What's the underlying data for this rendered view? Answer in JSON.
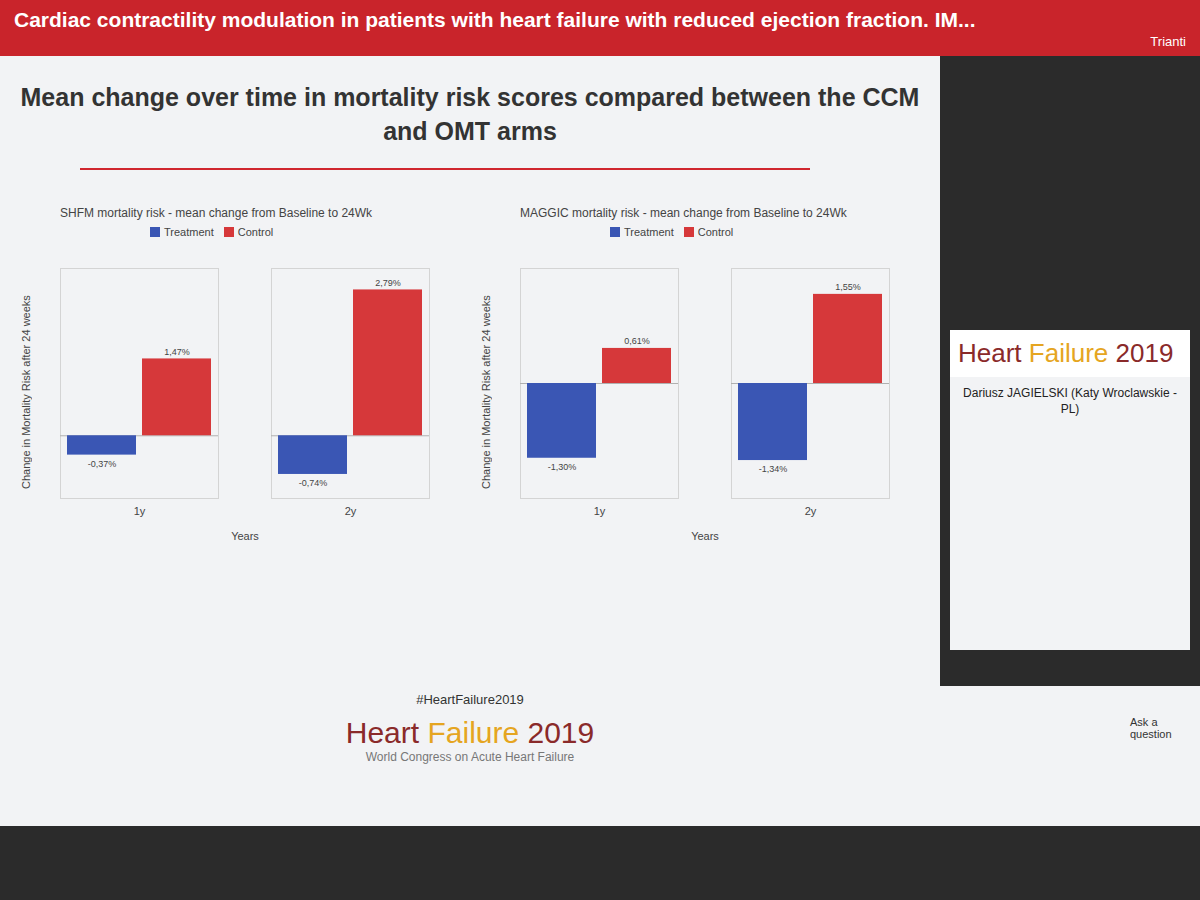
{
  "slide": {
    "header": "Cardiac contractility modulation in patients with heart failure with reduced ejection fraction. IM...",
    "session": "Trianti",
    "title": "Mean change over time in mortality risk scores compared between the CCM and OMT arms",
    "speaker": "Dariusz JAGIELSKI (Katy Wroclawskie - PL)",
    "brand": [
      "Heart",
      "Failure",
      "2019"
    ],
    "hashtag": "#HeartFailure2019",
    "congress": "World Congress on Acute Heart Failure",
    "ask": "Ask a question"
  },
  "chart_data": [
    {
      "type": "bar",
      "title": "SHFM mortality risk - mean change from Baseline to 24Wk",
      "x_label": "Years",
      "y_label": "Change in Mortality Risk after 24 weeks",
      "categories": [
        "1y",
        "2y"
      ],
      "series": [
        {
          "name": "Treatment",
          "color": "#3a56b4",
          "values": [
            -0.37,
            -0.74
          ],
          "value_labels": [
            "-0,37%",
            "-0,74%"
          ]
        },
        {
          "name": "Control",
          "color": "#d6383a",
          "values": [
            1.47,
            2.79
          ],
          "value_labels": [
            "1,47%",
            "2,79%"
          ]
        }
      ],
      "ylim": [
        -1.2,
        3.2
      ],
      "tick_labels": "x",
      "data_labels": true,
      "legend": "top"
    },
    {
      "type": "bar",
      "title": "MAGGIC mortality risk - mean change from Baseline to 24Wk",
      "x_label": "Years",
      "y_label": "Change in Mortality Risk after 24 weeks",
      "categories": [
        "1y",
        "2y"
      ],
      "series": [
        {
          "name": "Treatment",
          "color": "#3a56b4",
          "values": [
            -1.3,
            -1.34
          ],
          "value_labels": [
            "-1,30%",
            "-1,34%"
          ]
        },
        {
          "name": "Control",
          "color": "#d6383a",
          "values": [
            0.61,
            1.55
          ],
          "value_labels": [
            "0,61%",
            "1,55%"
          ]
        }
      ],
      "ylim": [
        -2,
        2
      ],
      "tick_labels": "x",
      "data_labels": true,
      "legend": "top"
    }
  ]
}
